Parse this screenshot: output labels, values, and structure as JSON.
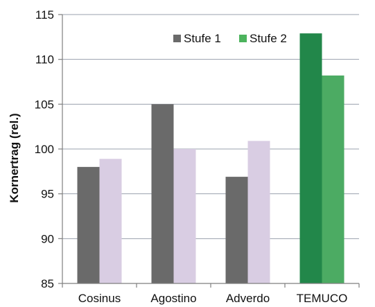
{
  "colors": {
    "stufe1": "#6a6a6a",
    "stufe2": "#d9cde3",
    "temuco_stufe1": "#22874a",
    "temuco_stufe2": "#4cab63",
    "legend_stufe2": "#4cb35d",
    "gridline": "#9aa0ad",
    "axis": "#7f7f7f"
  },
  "chart_data": {
    "type": "bar",
    "ylabel": "Kornertrag (rel.)",
    "xlabel": "",
    "ylim": [
      85,
      115
    ],
    "yticks": [
      85,
      90,
      95,
      100,
      105,
      110,
      115
    ],
    "grid": true,
    "legend_position": "top-right",
    "categories": [
      "Cosinus",
      "Agostino",
      "Adverdo",
      "TEMUCO"
    ],
    "series": [
      {
        "name": "Stufe 1",
        "values": [
          98,
          105,
          96.9,
          112.9
        ]
      },
      {
        "name": "Stufe 2",
        "values": [
          98.9,
          100,
          100.9,
          108.2
        ]
      }
    ],
    "highlighted_category": "TEMUCO"
  }
}
